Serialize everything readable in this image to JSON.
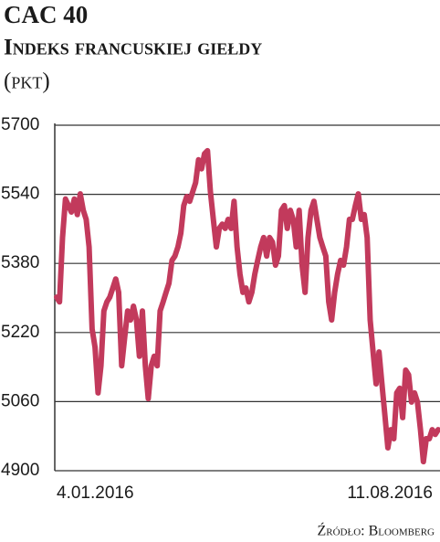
{
  "chart_data": {
    "type": "line",
    "title": "CAC 40",
    "subtitle": "Indeks francuskiej giełdy",
    "y_label": "(pkt)",
    "source": "Źródło: Bloomberg",
    "categories": [
      "4.01.2016",
      null,
      null,
      null,
      null,
      null,
      null,
      null,
      null,
      null,
      null,
      null,
      null,
      null,
      null,
      null,
      null,
      null,
      null,
      null,
      null,
      null,
      null,
      null,
      null,
      null,
      null,
      null,
      null,
      null,
      null,
      null,
      null,
      null,
      null,
      null,
      null,
      null,
      null,
      null,
      null,
      null,
      null,
      null,
      null,
      null,
      null,
      null,
      null,
      null,
      null,
      null,
      null,
      null,
      null,
      null,
      null,
      null,
      null,
      null,
      null,
      null,
      null,
      null,
      null,
      null,
      null,
      null,
      null,
      null,
      null,
      null,
      null,
      null,
      null,
      null,
      null,
      null,
      null,
      null,
      null,
      null,
      null,
      null,
      null,
      null,
      null,
      null,
      null,
      null,
      null,
      null,
      null,
      null,
      null,
      null,
      null,
      null,
      null,
      null,
      null,
      null,
      null,
      null,
      null,
      null,
      null,
      null,
      null,
      null,
      null,
      null,
      null,
      null,
      null,
      null,
      null,
      null,
      null,
      null,
      null,
      null,
      null,
      null,
      null,
      null,
      null,
      null,
      null,
      "11.08.2016"
    ],
    "series": [
      {
        "name": "CAC 40",
        "color": "#c23a5c",
        "values": [
          5302,
          5291,
          5440,
          5529,
          5514,
          5499,
          5529,
          5493,
          5541,
          5503,
          5482,
          5418,
          5228,
          5186,
          5080,
          5143,
          5270,
          5291,
          5302,
          5323,
          5344,
          5313,
          5143,
          5207,
          5270,
          5249,
          5281,
          5249,
          5165,
          5270,
          5143,
          5067,
          5143,
          5165,
          5143,
          5270,
          5291,
          5313,
          5334,
          5387,
          5397,
          5418,
          5450,
          5514,
          5535,
          5524,
          5546,
          5567,
          5620,
          5599,
          5634,
          5641,
          5546,
          5482,
          5418,
          5461,
          5471,
          5461,
          5482,
          5461,
          5524,
          5418,
          5355,
          5313,
          5323,
          5291,
          5313,
          5355,
          5387,
          5418,
          5440,
          5397,
          5440,
          5429,
          5376,
          5397,
          5503,
          5514,
          5461,
          5503,
          5482,
          5418,
          5503,
          5376,
          5313,
          5440,
          5503,
          5524,
          5482,
          5440,
          5418,
          5397,
          5291,
          5249,
          5313,
          5355,
          5387,
          5376,
          5418,
          5482,
          5482,
          5514,
          5541,
          5482,
          5493,
          5440,
          5249,
          5175,
          5101,
          5175,
          5101,
          5027,
          4953,
          4995,
          4974,
          5080,
          5091,
          5023,
          5133,
          5122,
          5059,
          5080,
          5059,
          4995,
          4921,
          4974,
          4974,
          4995,
          4984,
          4995
        ]
      }
    ],
    "ylim": [
      4900,
      5700
    ],
    "yticks": [
      4900,
      5060,
      5220,
      5380,
      5540,
      5700
    ],
    "grid": true
  }
}
